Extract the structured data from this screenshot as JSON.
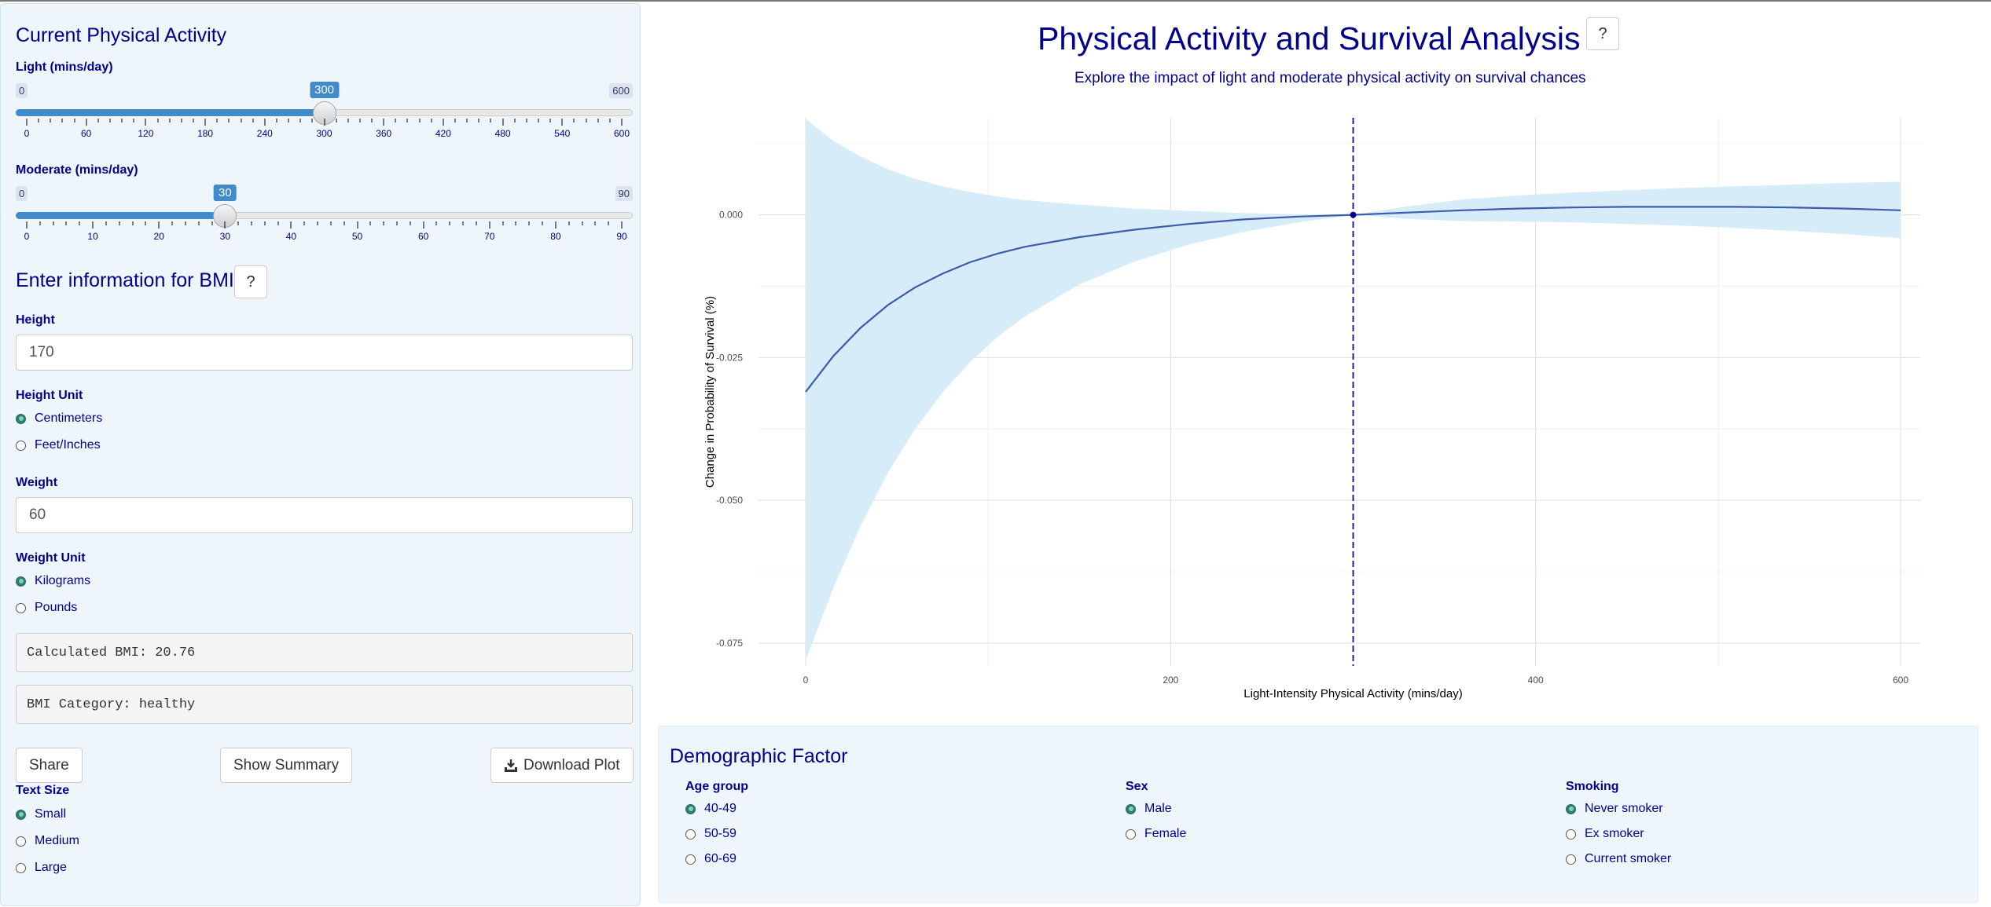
{
  "sidebar": {
    "pa_title": "Current Physical Activity",
    "light": {
      "label": "Light (mins/day)",
      "min": "0",
      "max": "600",
      "value": "300",
      "value_num": 300,
      "range": [
        0,
        600
      ],
      "ticks": [
        "0",
        "60",
        "120",
        "180",
        "240",
        "300",
        "360",
        "420",
        "480",
        "540",
        "600"
      ]
    },
    "moderate": {
      "label": "Moderate (mins/day)",
      "min": "0",
      "max": "90",
      "value": "30",
      "value_num": 30,
      "range": [
        0,
        90
      ],
      "ticks": [
        "0",
        "10",
        "20",
        "30",
        "40",
        "50",
        "60",
        "70",
        "80",
        "90"
      ]
    },
    "bmi_title": "Enter information for BMI",
    "help_label": "?",
    "height_label": "Height",
    "height_value": "170",
    "height_unit_label": "Height Unit",
    "height_units": [
      "Centimeters",
      "Feet/Inches"
    ],
    "height_unit_selected": "Centimeters",
    "weight_label": "Weight",
    "weight_value": "60",
    "weight_unit_label": "Weight Unit",
    "weight_units": [
      "Kilograms",
      "Pounds"
    ],
    "weight_unit_selected": "Kilograms",
    "bmi_output": "Calculated BMI: 20.76",
    "bmi_category": "BMI Category: healthy",
    "share_label": "Share",
    "summary_label": "Show Summary",
    "download_label": "Download Plot",
    "text_size_label": "Text Size",
    "text_sizes": [
      "Small",
      "Medium",
      "Large"
    ],
    "text_size_selected": "Small"
  },
  "main": {
    "title": "Physical Activity and Survival Analysis",
    "help_label": "?",
    "subtitle": "Explore the impact of light and moderate physical activity on survival chances"
  },
  "demographic": {
    "title": "Demographic Factor",
    "age_label": "Age group",
    "age_options": [
      "40-49",
      "50-59",
      "60-69"
    ],
    "age_selected": "40-49",
    "sex_label": "Sex",
    "sex_options": [
      "Male",
      "Female"
    ],
    "sex_selected": "Male",
    "smoking_label": "Smoking",
    "smoking_options": [
      "Never smoker",
      "Ex smoker",
      "Current smoker"
    ],
    "smoking_selected": "Never smoker"
  },
  "chart_data": {
    "type": "line",
    "xlabel": "Light-Intensity Physical Activity (mins/day)",
    "ylabel": "Change in Probability of Survival (%)",
    "xlim": [
      0,
      600
    ],
    "ylim": [
      -0.079,
      0.017
    ],
    "xticks": [
      0,
      200,
      400,
      600
    ],
    "yticks": [
      0.0,
      -0.025,
      -0.05,
      -0.075
    ],
    "ytick_labels": [
      "0.000",
      "-0.025",
      "-0.050",
      "-0.075"
    ],
    "grid": true,
    "reference_x": 300,
    "colors": {
      "line": "#3b5bab",
      "band": "#d6ecf8",
      "vline": "#0000cd"
    },
    "series": [
      {
        "x": [
          0,
          15,
          30,
          45,
          60,
          75,
          90,
          105,
          120,
          150,
          180,
          210,
          240,
          270,
          300,
          330,
          360,
          390,
          420,
          450,
          480,
          510,
          540,
          570,
          600
        ],
        "y": [
          -0.031,
          -0.0248,
          -0.0198,
          -0.0158,
          -0.0127,
          -0.0103,
          -0.0083,
          -0.0068,
          -0.0056,
          -0.0039,
          -0.0026,
          -0.0016,
          -0.0008,
          -0.0003,
          0.0,
          0.0004,
          0.0008,
          0.0011,
          0.0013,
          0.0014,
          0.0014,
          0.0014,
          0.0013,
          0.0011,
          0.0008
        ],
        "lower": [
          -0.078,
          -0.0655,
          -0.0545,
          -0.0452,
          -0.0375,
          -0.0311,
          -0.0258,
          -0.0214,
          -0.0178,
          -0.0122,
          -0.0082,
          -0.0052,
          -0.003,
          -0.0013,
          0.0,
          -0.0007,
          -0.0011,
          -0.0012,
          -0.0013,
          -0.0016,
          -0.0019,
          -0.0023,
          -0.0028,
          -0.0034,
          -0.0041
        ],
        "upper": [
          0.0168,
          0.013,
          0.0102,
          0.008,
          0.0063,
          0.005,
          0.004,
          0.0032,
          0.0026,
          0.0018,
          0.0011,
          0.0007,
          0.0003,
          0.0001,
          0.0,
          0.0015,
          0.0027,
          0.0034,
          0.0039,
          0.0043,
          0.0047,
          0.005,
          0.0053,
          0.0056,
          0.0058
        ]
      }
    ]
  }
}
